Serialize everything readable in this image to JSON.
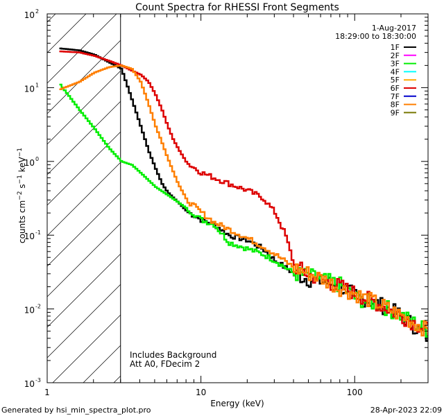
{
  "footer": {
    "generated": "Generated by hsi_min_spectra_plot.pro",
    "timestamp": "28-Apr-2023 22:09"
  },
  "chart_data": {
    "type": "line",
    "title": "Count Spectra for RHESSI Front Segments",
    "xlabel": "Energy (keV)",
    "ylabel": "counts cm^-2 s^-1 keV^-1",
    "xscale": "log",
    "yscale": "log",
    "xlim": [
      1,
      300
    ],
    "ylim": [
      0.001,
      100
    ],
    "grid": false,
    "xticks": [
      {
        "value": 1,
        "label": "1"
      },
      {
        "value": 10,
        "label": "10"
      },
      {
        "value": 100,
        "label": "100"
      }
    ],
    "yticks": [
      {
        "value": 0.001,
        "base": "10",
        "exp": "-3"
      },
      {
        "value": 0.01,
        "base": "10",
        "exp": "-2"
      },
      {
        "value": 0.1,
        "base": "10",
        "exp": "-1"
      },
      {
        "value": 1,
        "base": "10",
        "exp": "0"
      },
      {
        "value": 10,
        "base": "10",
        "exp": "1"
      },
      {
        "value": 100,
        "base": "10",
        "exp": "2"
      }
    ],
    "shaded_region": {
      "xmin": 1,
      "xmax": 3,
      "style": "diagonal-hatch"
    },
    "date": "1-Aug-2017",
    "time_range": "18:29:00 to 18:30:00",
    "annotations": [
      "Includes Background",
      "Att A0, FDecim 2"
    ],
    "legend_position": "top-right",
    "series": [
      {
        "name": "1F",
        "color": "#000000",
        "x": [
          1.2,
          1.6,
          2.0,
          2.5,
          3.0,
          3.5,
          4.0,
          4.5,
          5.0,
          5.5,
          6.0,
          7.0,
          8.0,
          10.0,
          12.0,
          15.0,
          20.0,
          25.0,
          30.0,
          40.0,
          50.0,
          60.0,
          80.0,
          100.0,
          150.0,
          200.0,
          300.0
        ],
        "y": [
          34,
          32,
          28,
          22,
          18,
          7,
          3,
          1.4,
          0.8,
          0.5,
          0.38,
          0.28,
          0.21,
          0.16,
          0.14,
          0.1,
          0.085,
          0.065,
          0.045,
          0.03,
          0.025,
          0.024,
          0.02,
          0.015,
          0.011,
          0.008,
          0.004
        ]
      },
      {
        "name": "2F",
        "color": "#ff00ff",
        "x": [],
        "y": []
      },
      {
        "name": "3F",
        "color": "#00ee00",
        "x": [
          1.2,
          1.6,
          2.0,
          2.5,
          3.0,
          3.5,
          4.0,
          5.0,
          6.0,
          7.0,
          8.0,
          10.0,
          12.0,
          15.0,
          20.0,
          25.0,
          30.0,
          40.0,
          50.0,
          60.0,
          80.0,
          100.0,
          150.0,
          200.0,
          300.0
        ],
        "y": [
          11,
          5,
          2.8,
          1.5,
          1.0,
          0.9,
          0.7,
          0.45,
          0.35,
          0.28,
          0.23,
          0.16,
          0.14,
          0.08,
          0.065,
          0.055,
          0.045,
          0.03,
          0.028,
          0.025,
          0.021,
          0.014,
          0.011,
          0.008,
          0.005
        ]
      },
      {
        "name": "4F",
        "color": "#00ffff",
        "x": [],
        "y": []
      },
      {
        "name": "5F",
        "color": "#ffaa00",
        "x": [],
        "y": []
      },
      {
        "name": "6F",
        "color": "#dd0000",
        "x": [
          1.2,
          1.6,
          2.0,
          2.5,
          3.0,
          3.5,
          4.0,
          4.5,
          5.0,
          5.5,
          6.0,
          6.5,
          7.0,
          8.0,
          10.0,
          12.0,
          15.0,
          20.0,
          25.0,
          30.0,
          35.0,
          40.0,
          50.0,
          60.0,
          80.0,
          100.0,
          150.0,
          200.0,
          300.0
        ],
        "y": [
          31,
          30,
          27,
          23,
          20,
          17,
          15,
          12,
          8,
          5,
          3,
          2,
          1.5,
          0.95,
          0.7,
          0.6,
          0.5,
          0.4,
          0.32,
          0.2,
          0.1,
          0.038,
          0.029,
          0.025,
          0.02,
          0.016,
          0.011,
          0.008,
          0.005
        ]
      },
      {
        "name": "7F",
        "color": "#0000cc",
        "x": [],
        "y": []
      },
      {
        "name": "8F",
        "color": "#ff7f00",
        "x": [
          1.2,
          1.6,
          2.0,
          2.5,
          3.0,
          3.5,
          4.0,
          4.5,
          5.0,
          5.5,
          6.0,
          7.0,
          8.0,
          10.0,
          12.0,
          15.0,
          20.0,
          25.0,
          30.0,
          40.0,
          50.0,
          60.0,
          80.0,
          100.0,
          150.0,
          200.0,
          300.0
        ],
        "y": [
          9.5,
          12,
          16,
          19,
          20,
          18,
          12,
          6,
          3,
          1.8,
          1.1,
          0.5,
          0.3,
          0.2,
          0.15,
          0.12,
          0.09,
          0.07,
          0.055,
          0.036,
          0.03,
          0.026,
          0.019,
          0.016,
          0.011,
          0.008,
          0.005
        ]
      },
      {
        "name": "9F",
        "color": "#777700",
        "x": [],
        "y": []
      }
    ]
  }
}
